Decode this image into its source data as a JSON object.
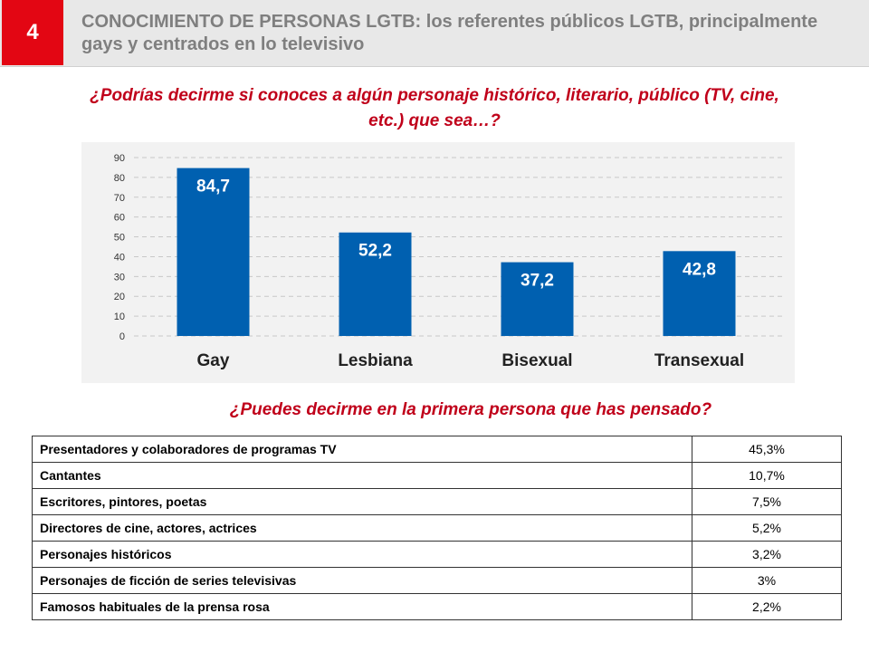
{
  "header": {
    "number": "4",
    "title": "CONOCIMIENTO DE PERSONAS LGTB: los referentes públicos LGTB, principalmente gays y centrados en lo televisivo"
  },
  "question1": "¿Podrías decirme si conoces a algún personaje histórico, literario, público (TV, cine, etc.) que sea…?",
  "question2": "¿Puedes decirme en la primera persona que has pensado?",
  "colors": {
    "bar": "#0060b0",
    "accent": "#e30613",
    "question": "#c0001a"
  },
  "chart_data": {
    "type": "bar",
    "categories": [
      "Gay",
      "Lesbiana",
      "Bisexual",
      "Transexual"
    ],
    "values": [
      84.7,
      52.2,
      37.2,
      42.8
    ],
    "value_labels": [
      "84,7",
      "52,2",
      "37,2",
      "42,8"
    ],
    "y_ticks": [
      "0",
      "10",
      "20",
      "30",
      "40",
      "50",
      "60",
      "70",
      "80",
      "90"
    ],
    "ylim": [
      0,
      90
    ],
    "grid": true,
    "title": "",
    "xlabel": "",
    "ylabel": ""
  },
  "table": {
    "rows": [
      {
        "label": "Presentadores y colaboradores de programas TV",
        "value": "45,3%"
      },
      {
        "label": "Cantantes",
        "value": "10,7%"
      },
      {
        "label": "Escritores, pintores, poetas",
        "value": "7,5%"
      },
      {
        "label": "Directores de cine, actores, actrices",
        "value": "5,2%"
      },
      {
        "label": "Personajes históricos",
        "value": "3,2%"
      },
      {
        "label": "Personajes de ficción de series televisivas",
        "value": "3%"
      },
      {
        "label": "Famosos habituales de la prensa rosa",
        "value": "2,2%"
      }
    ]
  }
}
